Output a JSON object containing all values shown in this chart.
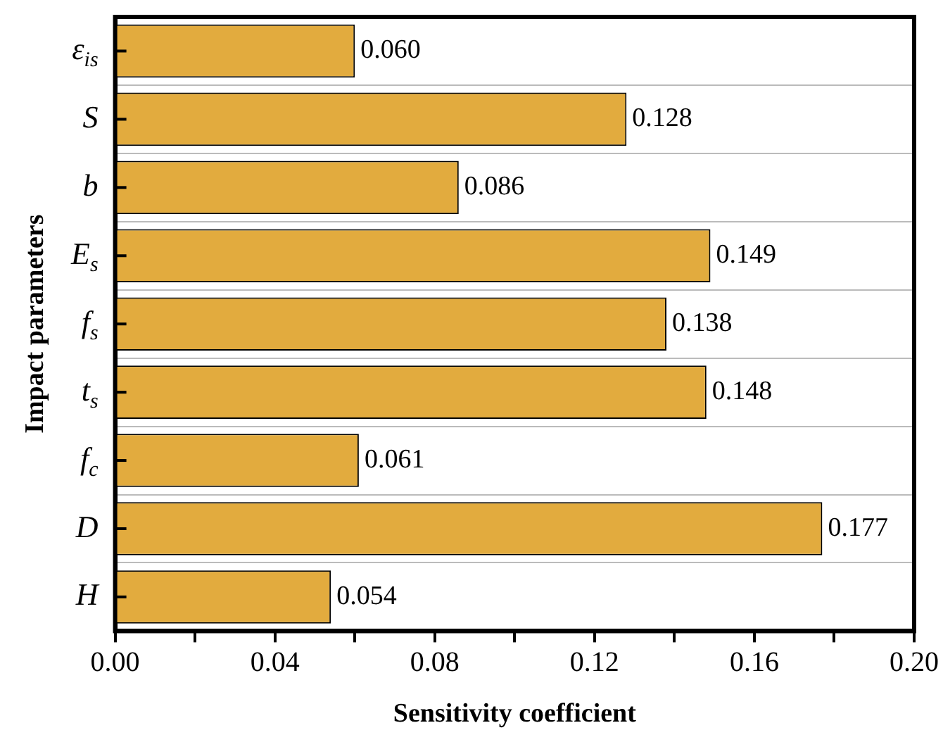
{
  "chart_data": {
    "type": "bar",
    "orientation": "horizontal",
    "xlabel": "Sensitivity coefficient",
    "ylabel": "Impact parameters",
    "categories": [
      "ε$_{is}$",
      "S",
      "b",
      "E$_{s}$",
      "f$_{s}$",
      "t$_{s}$",
      "f$_{c}$",
      "D",
      "H"
    ],
    "values": [
      0.06,
      0.128,
      0.086,
      0.149,
      0.138,
      0.148,
      0.061,
      0.177,
      0.054
    ],
    "value_labels": [
      "0.060",
      "0.128",
      "0.086",
      "0.149",
      "0.138",
      "0.148",
      "0.061",
      "0.177",
      "0.054"
    ],
    "color": "#e2ab3e",
    "xlim": [
      0,
      0.2
    ],
    "xticks": [
      {
        "value": 0,
        "label": "0.00"
      },
      {
        "value": 0.02,
        "label": null
      },
      {
        "value": 0.04,
        "label": "0.04"
      },
      {
        "value": 0.06,
        "label": null
      },
      {
        "value": 0.08,
        "label": "0.08"
      },
      {
        "value": 0.1,
        "label": null
      },
      {
        "value": 0.12,
        "label": "0.12"
      },
      {
        "value": 0.14,
        "label": null
      },
      {
        "value": 0.16,
        "label": "0.16"
      },
      {
        "value": 0.18,
        "label": null
      },
      {
        "value": 0.2,
        "label": "0.20"
      }
    ],
    "grid": "y",
    "legend": false
  }
}
